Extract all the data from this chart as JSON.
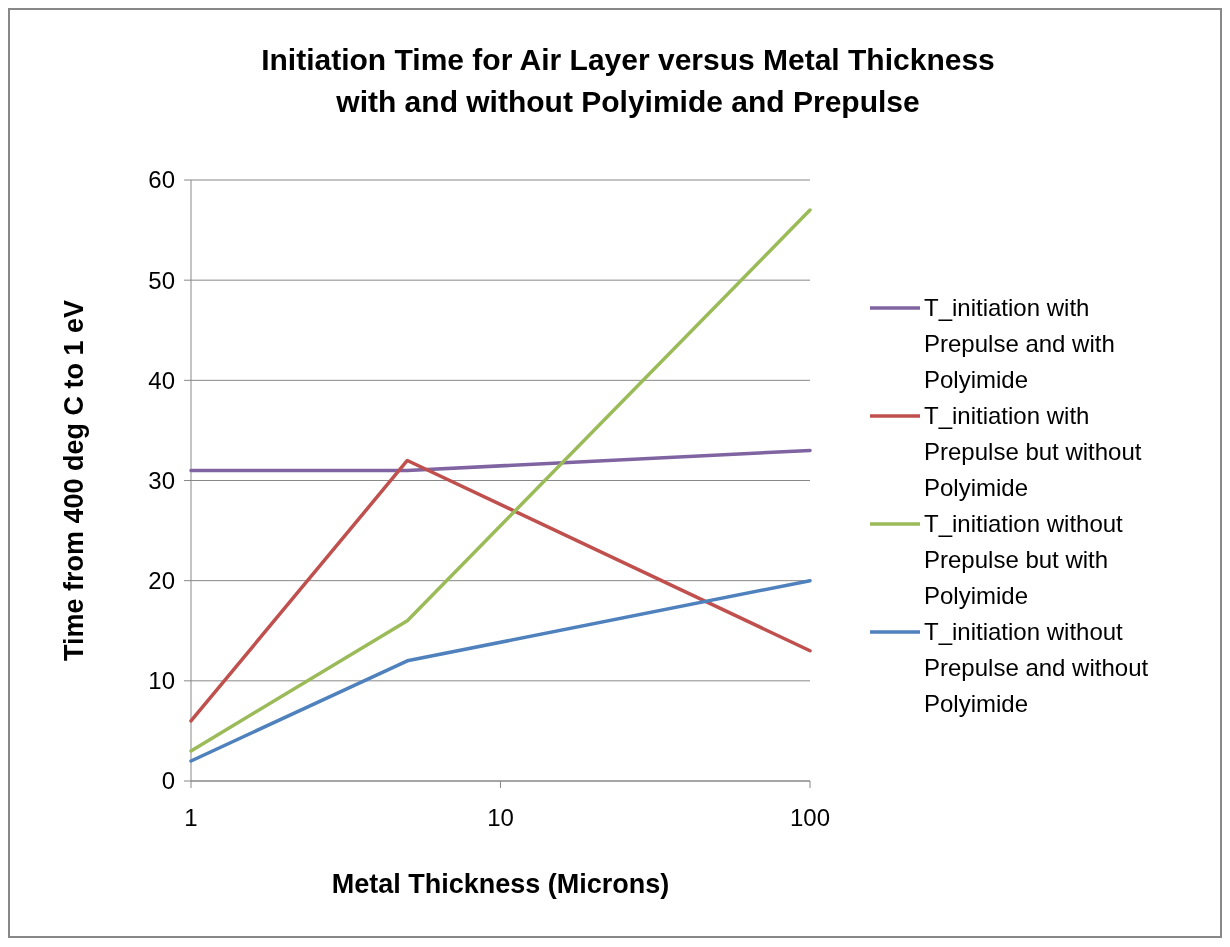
{
  "chart_data": {
    "type": "line",
    "title": "Initiation Time for Air Layer versus Metal Thickness with and without Polyimide and Prepulse",
    "xlabel": "Metal Thickness (Microns)",
    "ylabel": "Time from 400 deg C to 1 eV",
    "x": [
      1,
      5,
      100
    ],
    "log": "x",
    "xlim": [
      1,
      100
    ],
    "xticks": [
      1,
      10,
      100
    ],
    "ylim": [
      0,
      60
    ],
    "yticks": [
      0,
      10,
      20,
      30,
      40,
      50,
      60
    ],
    "grid": "y",
    "legend": "right",
    "marker": "none",
    "line_style": "solid",
    "series": [
      {
        "name": "T_initiation with Prepulse and with Polyimide",
        "color": "#8064a2",
        "values": [
          31,
          31,
          33
        ]
      },
      {
        "name": "T_initiation with Prepulse but without Polyimide",
        "color": "#c0504d",
        "values": [
          6,
          32,
          13
        ]
      },
      {
        "name": "T_initiation without Prepulse but with Polyimide",
        "color": "#9bbb59",
        "values": [
          3,
          16,
          57
        ]
      },
      {
        "name": "T_initiation without Prepulse and without Polyimide",
        "color": "#4f81bd",
        "values": [
          2,
          12,
          20
        ]
      }
    ]
  }
}
